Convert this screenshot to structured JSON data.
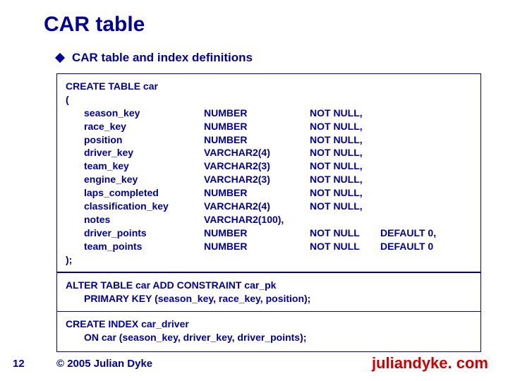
{
  "title": "CAR table",
  "subtitle": "CAR table and index definitions",
  "create_stmt": {
    "header": "CREATE TABLE car",
    "open": "(",
    "close": ");",
    "columns": [
      {
        "name": "season_key",
        "type": "NUMBER",
        "constraint": "NOT NULL,",
        "default": ""
      },
      {
        "name": "race_key",
        "type": "NUMBER",
        "constraint": "NOT NULL,",
        "default": ""
      },
      {
        "name": "position",
        "type": "NUMBER",
        "constraint": "NOT NULL,",
        "default": ""
      },
      {
        "name": "driver_key",
        "type": "VARCHAR2(4)",
        "constraint": "NOT NULL,",
        "default": ""
      },
      {
        "name": "team_key",
        "type": "VARCHAR2(3)",
        "constraint": "NOT NULL,",
        "default": ""
      },
      {
        "name": "engine_key",
        "type": "VARCHAR2(3)",
        "constraint": "NOT NULL,",
        "default": ""
      },
      {
        "name": "laps_completed",
        "type": "NUMBER",
        "constraint": "NOT NULL,",
        "default": ""
      },
      {
        "name": "classification_key",
        "type": "VARCHAR2(4)",
        "constraint": "NOT NULL,",
        "default": ""
      },
      {
        "name": "notes",
        "type": "VARCHAR2(100),",
        "constraint": "",
        "default": ""
      },
      {
        "name": "driver_points",
        "type": "NUMBER",
        "constraint": "NOT NULL",
        "default": "DEFAULT 0,"
      },
      {
        "name": "team_points",
        "type": "NUMBER",
        "constraint": "NOT NULL",
        "default": "DEFAULT 0"
      }
    ]
  },
  "alter_stmt": {
    "line1": "ALTER TABLE car ADD CONSTRAINT car_pk",
    "line2": "PRIMARY KEY (season_key, race_key, position);"
  },
  "index_stmt": {
    "line1": "CREATE INDEX car_driver",
    "line2": "ON car (season_key, driver_key, driver_points);"
  },
  "page_number": "12",
  "copyright": "© 2005 Julian Dyke",
  "site": "juliandyke. com",
  "colors": {
    "primary": "#000099",
    "accent": "#cc0000",
    "bg": "#ffffff"
  },
  "fonts": {
    "title_size": 30,
    "subtitle_size": 17,
    "body_size": 14,
    "footer_size": 15,
    "site_size": 22
  }
}
